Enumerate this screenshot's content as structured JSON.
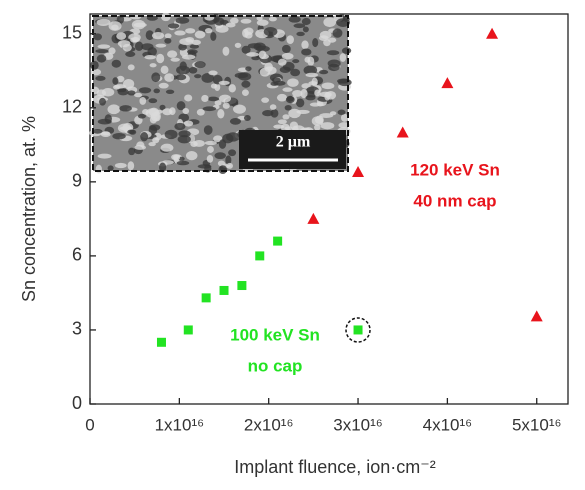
{
  "chart_data": {
    "type": "scatter",
    "xlabel": "Implant fluence, ion·cm⁻²",
    "ylabel": "Sn concentration, at. %",
    "xlim": [
      0,
      5.35e+16
    ],
    "ylim": [
      0,
      15.8
    ],
    "xticks": [
      0,
      {
        "value": 1e+16,
        "label": "1x10¹⁶"
      },
      {
        "value": 2e+16,
        "label": "2x10¹⁶"
      },
      {
        "value": 3e+16,
        "label": "3x10¹⁶"
      },
      {
        "value": 4e+16,
        "label": "4x10¹⁶"
      },
      {
        "value": 5e+16,
        "label": "5x10¹⁶"
      }
    ],
    "yticks": [
      0,
      3,
      6,
      9,
      12,
      15
    ],
    "series": [
      {
        "color": "#22e322",
        "marker": "square",
        "x": [
          8000000000000000.0,
          1.1e+16,
          1.3e+16,
          1.5e+16,
          1.7e+16,
          1.9e+16,
          2.1e+16,
          3e+16
        ],
        "values": [
          2.5,
          3.0,
          4.3,
          4.6,
          4.8,
          6.0,
          6.6,
          3.0
        ]
      },
      {
        "color": "#e8141c",
        "marker": "triangle",
        "x": [
          2.5e+16,
          3e+16,
          3.5e+16,
          4e+16,
          4.5e+16,
          5e+16
        ],
        "values": [
          7.5,
          9.4,
          11.0,
          13.0,
          15.0,
          3.55
        ]
      }
    ],
    "annotations": [
      {
        "lines": [
          "120 keV Sn",
          "40 nm cap"
        ],
        "color": "#e8141c"
      },
      {
        "lines": [
          "100 keV Sn",
          "no cap"
        ],
        "color": "#22e322"
      }
    ],
    "inset": {
      "scale_bar": "2 µm"
    }
  }
}
